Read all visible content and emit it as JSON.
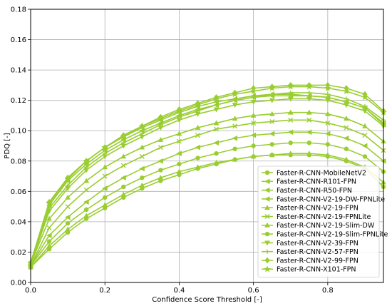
{
  "chart_data": {
    "type": "line",
    "xlabel": "Confidence Score Threshold [-]",
    "ylabel": "PDQ [-]",
    "xlim": [
      0.0,
      0.95
    ],
    "ylim": [
      0.0,
      0.18
    ],
    "xticks": [
      "0.0",
      "0.2",
      "0.4",
      "0.6",
      "0.8"
    ],
    "yticks": [
      "0.00",
      "0.02",
      "0.04",
      "0.06",
      "0.08",
      "0.10",
      "0.12",
      "0.14",
      "0.16",
      "0.18"
    ],
    "grid": true,
    "legend_position": "lower-right",
    "line_color": "#9ACD32",
    "x": [
      0.0,
      0.05,
      0.1,
      0.15,
      0.2,
      0.25,
      0.3,
      0.35,
      0.4,
      0.45,
      0.5,
      0.55,
      0.6,
      0.65,
      0.7,
      0.75,
      0.8,
      0.85,
      0.9,
      0.95
    ],
    "series": [
      {
        "name": "Faster-R-CNN-MobileNetV2",
        "marker": "circle",
        "values": [
          0.01,
          0.022,
          0.033,
          0.042,
          0.049,
          0.056,
          0.062,
          0.067,
          0.071,
          0.075,
          0.078,
          0.081,
          0.083,
          0.084,
          0.084,
          0.084,
          0.083,
          0.08,
          0.075,
          0.063
        ]
      },
      {
        "name": "Faster-R-CNN-R101-FPN",
        "marker": "triangle-left",
        "values": [
          0.012,
          0.053,
          0.069,
          0.08,
          0.089,
          0.096,
          0.102,
          0.107,
          0.112,
          0.116,
          0.119,
          0.121,
          0.123,
          0.124,
          0.124,
          0.123,
          0.122,
          0.119,
          0.115,
          0.104
        ]
      },
      {
        "name": "Faster-R-CNN-R50-FPN",
        "marker": "triangle-left",
        "values": [
          0.012,
          0.051,
          0.067,
          0.078,
          0.087,
          0.094,
          0.1,
          0.105,
          0.11,
          0.114,
          0.117,
          0.12,
          0.122,
          0.123,
          0.123,
          0.123,
          0.122,
          0.119,
          0.115,
          0.105
        ]
      },
      {
        "name": "Faster-R-CNN-V2-19-DW-FPNLite",
        "marker": "triangle-left",
        "values": [
          0.011,
          0.031,
          0.043,
          0.053,
          0.062,
          0.069,
          0.075,
          0.08,
          0.085,
          0.089,
          0.092,
          0.095,
          0.097,
          0.098,
          0.099,
          0.099,
          0.098,
          0.095,
          0.09,
          0.08
        ]
      },
      {
        "name": "Faster-R-CNN-V2-19-FPN",
        "marker": "triangle-up",
        "values": [
          0.012,
          0.042,
          0.056,
          0.067,
          0.076,
          0.083,
          0.089,
          0.094,
          0.098,
          0.102,
          0.105,
          0.108,
          0.11,
          0.111,
          0.112,
          0.112,
          0.111,
          0.108,
          0.103,
          0.093
        ]
      },
      {
        "name": "Faster-R-CNN-V2-19-FPNLite",
        "marker": "x",
        "values": [
          0.011,
          0.036,
          0.05,
          0.061,
          0.07,
          0.077,
          0.083,
          0.089,
          0.093,
          0.097,
          0.101,
          0.103,
          0.105,
          0.106,
          0.107,
          0.107,
          0.105,
          0.102,
          0.097,
          0.087
        ]
      },
      {
        "name": "Faster-R-CNN-V2-19-Slim-DW",
        "marker": "triangle-up",
        "values": [
          0.01,
          0.024,
          0.035,
          0.044,
          0.051,
          0.058,
          0.064,
          0.069,
          0.073,
          0.076,
          0.079,
          0.081,
          0.083,
          0.084,
          0.085,
          0.085,
          0.084,
          0.081,
          0.076,
          0.066
        ]
      },
      {
        "name": "Faster-R-CNN-V2-19-Slim-FPNLite",
        "marker": "circle",
        "values": [
          0.011,
          0.027,
          0.039,
          0.048,
          0.056,
          0.063,
          0.069,
          0.074,
          0.078,
          0.082,
          0.085,
          0.088,
          0.09,
          0.091,
          0.092,
          0.092,
          0.091,
          0.088,
          0.083,
          0.073
        ]
      },
      {
        "name": "Faster-R-CNN-V2-39-FPN",
        "marker": "triangle-down",
        "values": [
          0.012,
          0.047,
          0.062,
          0.074,
          0.083,
          0.09,
          0.096,
          0.102,
          0.107,
          0.111,
          0.114,
          0.117,
          0.119,
          0.12,
          0.121,
          0.121,
          0.12,
          0.117,
          0.113,
          0.103
        ]
      },
      {
        "name": "Faster-R-CNN-V2-57-FPN",
        "marker": "plus",
        "values": [
          0.012,
          0.049,
          0.064,
          0.076,
          0.085,
          0.092,
          0.098,
          0.104,
          0.109,
          0.113,
          0.117,
          0.12,
          0.122,
          0.124,
          0.125,
          0.125,
          0.124,
          0.121,
          0.116,
          0.107
        ]
      },
      {
        "name": "Faster-R-CNN-V2-99-FPN",
        "marker": "diamond",
        "values": [
          0.013,
          0.053,
          0.069,
          0.08,
          0.089,
          0.097,
          0.103,
          0.109,
          0.114,
          0.118,
          0.122,
          0.125,
          0.128,
          0.129,
          0.13,
          0.13,
          0.13,
          0.128,
          0.124,
          0.113
        ]
      },
      {
        "name": "Faster-R-CNN-X101-FPN",
        "marker": "star",
        "values": [
          0.013,
          0.052,
          0.068,
          0.08,
          0.089,
          0.096,
          0.103,
          0.108,
          0.113,
          0.117,
          0.121,
          0.124,
          0.126,
          0.128,
          0.129,
          0.129,
          0.128,
          0.126,
          0.122,
          0.112
        ]
      }
    ]
  }
}
